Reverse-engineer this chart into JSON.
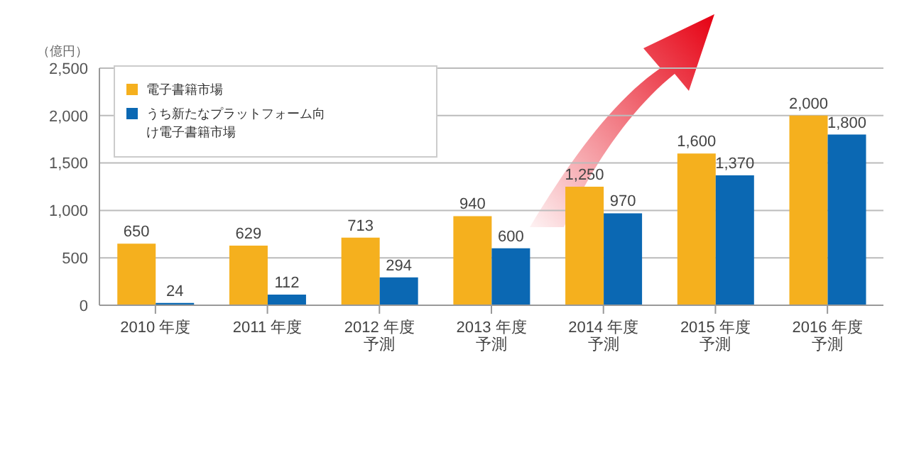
{
  "chart_data": {
    "type": "bar",
    "ylabel": "（億円）",
    "categories": [
      "2010 年度",
      "2011 年度",
      "2012 年度予測",
      "2013 年度予測",
      "2014 年度予測",
      "2015 年度予測",
      "2016 年度予測"
    ],
    "series": [
      {
        "name": "電子書籍市場",
        "color": "#f5b01e",
        "values": [
          650,
          629,
          713,
          940,
          1250,
          1600,
          2000
        ],
        "value_labels": [
          "650",
          "629",
          "713",
          "940",
          "1,250",
          "1,600",
          "2,000"
        ]
      },
      {
        "name": "うち新たなプラットフォーム向け電子書籍市場",
        "color": "#0b68b3",
        "values": [
          24,
          112,
          294,
          600,
          970,
          1370,
          1800
        ],
        "value_labels": [
          "24",
          "112",
          "294",
          "600",
          "970",
          "1,370",
          "1,800"
        ]
      }
    ],
    "ylim": [
      0,
      2500
    ],
    "yticks": [
      {
        "value": 0,
        "label": "0"
      },
      {
        "value": 500,
        "label": "500"
      },
      {
        "value": 1000,
        "label": "1,000"
      },
      {
        "value": 1500,
        "label": "1,500"
      },
      {
        "value": 2000,
        "label": "2,000"
      },
      {
        "value": 2500,
        "label": "2,500"
      }
    ],
    "grid": "y",
    "legend": "top left"
  }
}
